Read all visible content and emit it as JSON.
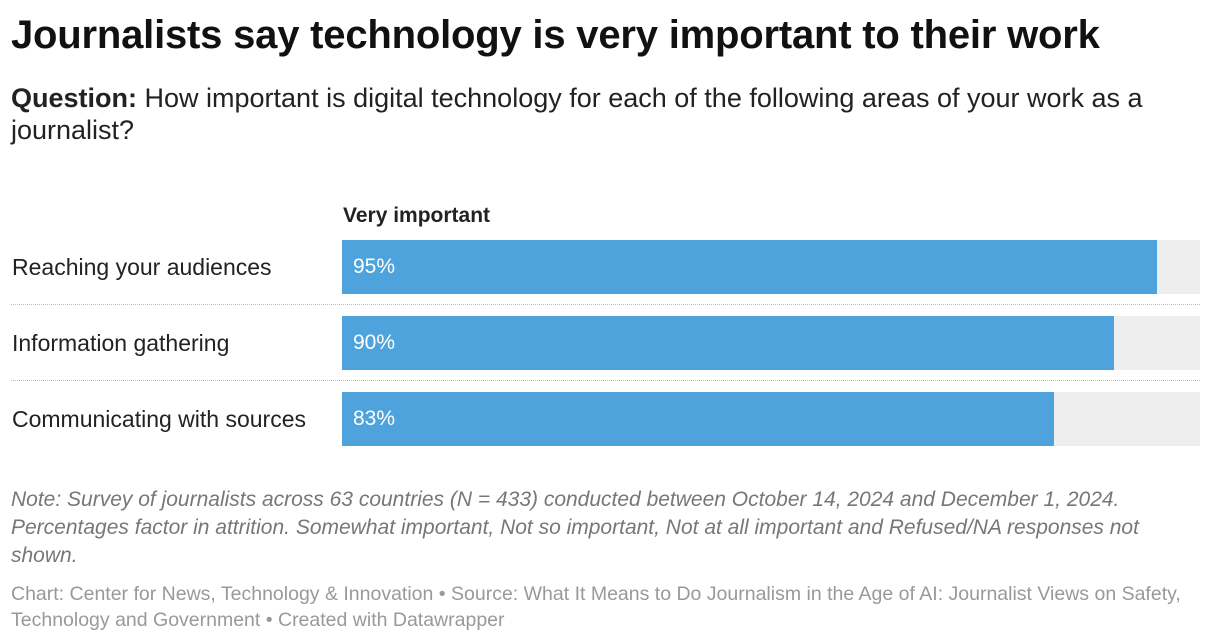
{
  "header": {
    "title": "Journalists say technology is very important to their work",
    "question_label": "Question:",
    "question_text": "How important is digital technology for each of the following areas of your work as a journalist?"
  },
  "chart_data": {
    "type": "bar",
    "orientation": "horizontal",
    "title": "Journalists say technology is very important to their work",
    "column_header": "Very important",
    "categories": [
      "Reaching your audiences",
      "Information gathering",
      "Communicating with sources"
    ],
    "values": [
      95,
      90,
      83
    ],
    "value_labels": [
      "95%",
      "90%",
      "83%"
    ],
    "xlim": [
      0,
      100
    ],
    "unit": "%",
    "bar_color": "#4ea3dc",
    "track_color": "#eeeeee",
    "xlabel": "",
    "ylabel": ""
  },
  "footer": {
    "note": "Note: Survey of journalists across 63 countries (N = 433) conducted between October 14, 2024 and December 1, 2024. Percentages factor in attrition. Somewhat important, Not so important, Not at all important and Refused/NA responses not shown.",
    "credits": "Chart: Center for News, Technology & Innovation • Source: What It Means to Do Journalism in the Age of AI: Journalist Views on Safety, Technology and Government • Created with Datawrapper"
  }
}
